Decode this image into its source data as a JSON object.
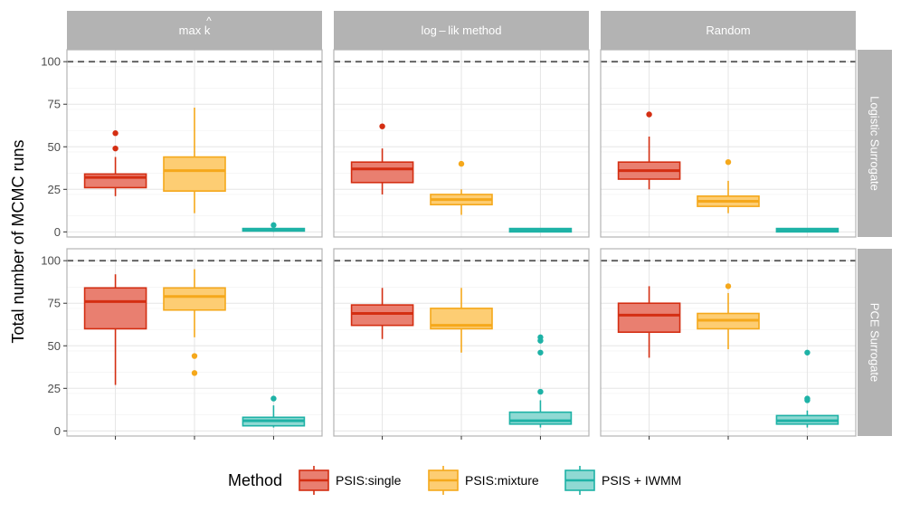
{
  "chart_data": {
    "type": "boxplot",
    "ylabel": "Total number of MCMC runs",
    "ylim": [
      -3,
      107
    ],
    "y_ticks": [
      0,
      25,
      50,
      75,
      100
    ],
    "reference_line": 100,
    "columns": [
      "max k",
      "log – lik method",
      "Random"
    ],
    "column_title_hat": "^",
    "rows": [
      "Logistic Surrogate",
      "PCE Surrogate"
    ],
    "legend": {
      "title": "Method",
      "items": [
        "PSIS:single",
        "PSIS:mixture",
        "PSIS + IWMM"
      ]
    },
    "colors": {
      "PSIS:single": "#D42E12",
      "PSIS:mixture": "#F5A81B",
      "PSIS + IWMM": "#1EB2A6"
    },
    "fills": {
      "PSIS:single": "#E97F70",
      "PSIS:mixture": "#FDCD73",
      "PSIS + IWMM": "#8FD9D3"
    },
    "panels": [
      {
        "row": 0,
        "col": 0,
        "boxes": [
          {
            "method": "PSIS:single",
            "min": 21,
            "q1": 26,
            "median": 32,
            "q3": 34,
            "max": 44,
            "outliers": [
              49,
              58
            ]
          },
          {
            "method": "PSIS:mixture",
            "min": 11,
            "q1": 24,
            "median": 36,
            "q3": 44,
            "max": 73,
            "outliers": []
          },
          {
            "method": "PSIS + IWMM",
            "min": 0,
            "q1": 0.5,
            "median": 1,
            "q3": 2,
            "max": 2,
            "outliers": [
              4
            ]
          }
        ]
      },
      {
        "row": 0,
        "col": 1,
        "boxes": [
          {
            "method": "PSIS:single",
            "min": 22,
            "q1": 29,
            "median": 37,
            "q3": 41,
            "max": 49,
            "outliers": [
              62
            ]
          },
          {
            "method": "PSIS:mixture",
            "min": 10,
            "q1": 16,
            "median": 19,
            "q3": 22,
            "max": 25,
            "outliers": [
              40
            ]
          },
          {
            "method": "PSIS + IWMM",
            "min": 0,
            "q1": 0,
            "median": 1,
            "q3": 2,
            "max": 2,
            "outliers": []
          }
        ]
      },
      {
        "row": 0,
        "col": 2,
        "boxes": [
          {
            "method": "PSIS:single",
            "min": 25,
            "q1": 31,
            "median": 36,
            "q3": 41,
            "max": 56,
            "outliers": [
              69
            ]
          },
          {
            "method": "PSIS:mixture",
            "min": 11,
            "q1": 15,
            "median": 18,
            "q3": 21,
            "max": 30,
            "outliers": [
              41
            ]
          },
          {
            "method": "PSIS + IWMM",
            "min": 0,
            "q1": 0,
            "median": 1,
            "q3": 2,
            "max": 2,
            "outliers": []
          }
        ]
      },
      {
        "row": 1,
        "col": 0,
        "boxes": [
          {
            "method": "PSIS:single",
            "min": 27,
            "q1": 60,
            "median": 76,
            "q3": 84,
            "max": 92,
            "outliers": []
          },
          {
            "method": "PSIS:mixture",
            "min": 55,
            "q1": 71,
            "median": 79,
            "q3": 84,
            "max": 95,
            "outliers": [
              34,
              44
            ]
          },
          {
            "method": "PSIS + IWMM",
            "min": 2,
            "q1": 3,
            "median": 6,
            "q3": 8,
            "max": 15,
            "outliers": [
              19
            ]
          }
        ]
      },
      {
        "row": 1,
        "col": 1,
        "boxes": [
          {
            "method": "PSIS:single",
            "min": 54,
            "q1": 62,
            "median": 69,
            "q3": 74,
            "max": 84,
            "outliers": []
          },
          {
            "method": "PSIS:mixture",
            "min": 46,
            "q1": 60,
            "median": 62,
            "q3": 72,
            "max": 84,
            "outliers": []
          },
          {
            "method": "PSIS + IWMM",
            "min": 2,
            "q1": 4,
            "median": 6,
            "q3": 11,
            "max": 18,
            "outliers": [
              23,
              46,
              53,
              55
            ]
          }
        ]
      },
      {
        "row": 1,
        "col": 2,
        "boxes": [
          {
            "method": "PSIS:single",
            "min": 43,
            "q1": 58,
            "median": 68,
            "q3": 75,
            "max": 85,
            "outliers": []
          },
          {
            "method": "PSIS:mixture",
            "min": 48,
            "q1": 60,
            "median": 65,
            "q3": 69,
            "max": 81,
            "outliers": [
              85
            ]
          },
          {
            "method": "PSIS + IWMM",
            "min": 2,
            "q1": 4,
            "median": 6,
            "q3": 9,
            "max": 12,
            "outliers": [
              18,
              19,
              46
            ]
          }
        ]
      }
    ]
  }
}
